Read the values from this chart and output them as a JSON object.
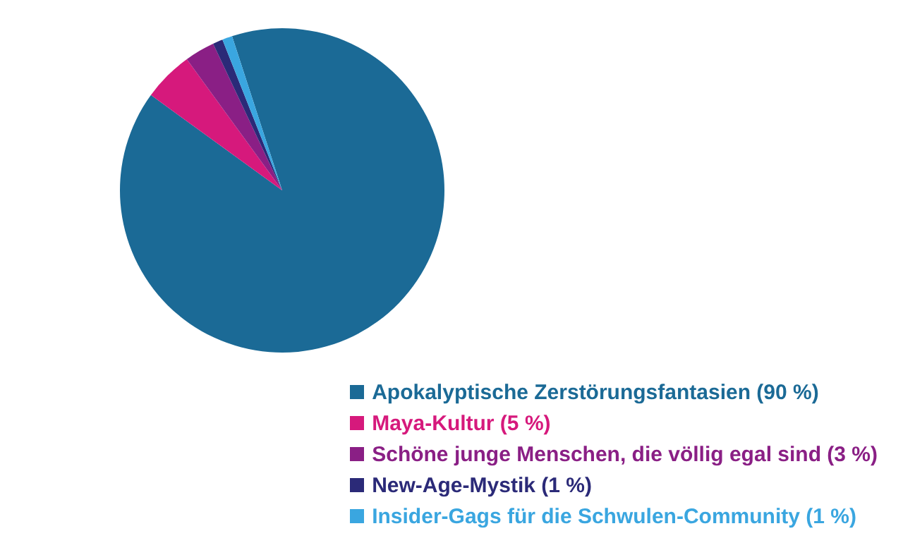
{
  "chart_data": {
    "type": "pie",
    "categories": [
      "Apokalyptische Zerstörungsfantasien (90 %)",
      "Maya-Kultur (5 %)",
      "Schöne junge Menschen, die völlig egal sind (3 %)",
      "New-Age-Mystik (1 %)",
      "Insider-Gags für die Schwulen-Community (1 %)"
    ],
    "values": [
      90,
      5,
      3,
      1,
      1
    ],
    "colors": [
      "#1b6a96",
      "#d6197c",
      "#8a1f85",
      "#2b2a78",
      "#3aa6e0"
    ],
    "legend": "bottom right"
  }
}
